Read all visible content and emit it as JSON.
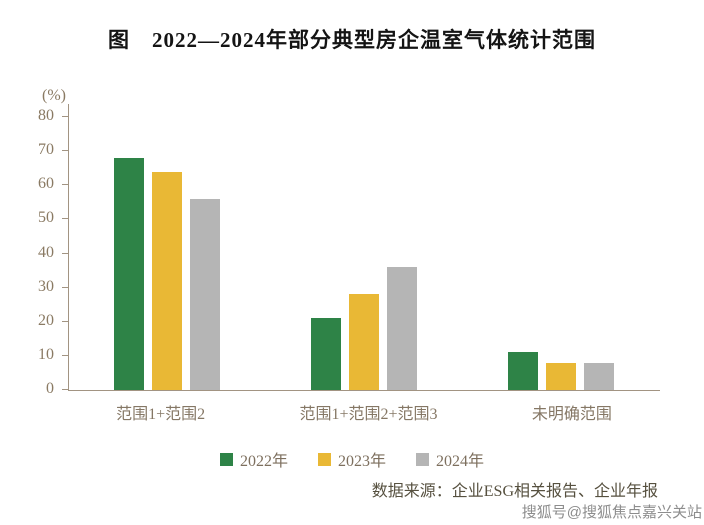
{
  "title": "图　2022—2024年部分典型房企温室气体统计范围",
  "source": "数据来源：企业ESG相关报告、企业年报",
  "watermark": "搜狐号@搜狐焦点嘉兴关站",
  "chart_data": {
    "type": "bar",
    "title": "2022—2024年部分典型房企温室气体统计范围",
    "ylabel": "(%)",
    "xlabel": "",
    "ylim": [
      0,
      80
    ],
    "ytick_step": 10,
    "grid": false,
    "legend_position": "bottom",
    "categories": [
      "范围1+范围2",
      "范围1+范围2+范围3",
      "未明确范围"
    ],
    "series": [
      {
        "name": "2022年",
        "color": "#2e8347",
        "values": [
          68,
          21,
          11
        ]
      },
      {
        "name": "2023年",
        "color": "#e9b835",
        "values": [
          64,
          28,
          8
        ]
      },
      {
        "name": "2024年",
        "color": "#b5b5b5",
        "values": [
          56,
          36,
          8
        ]
      }
    ]
  }
}
